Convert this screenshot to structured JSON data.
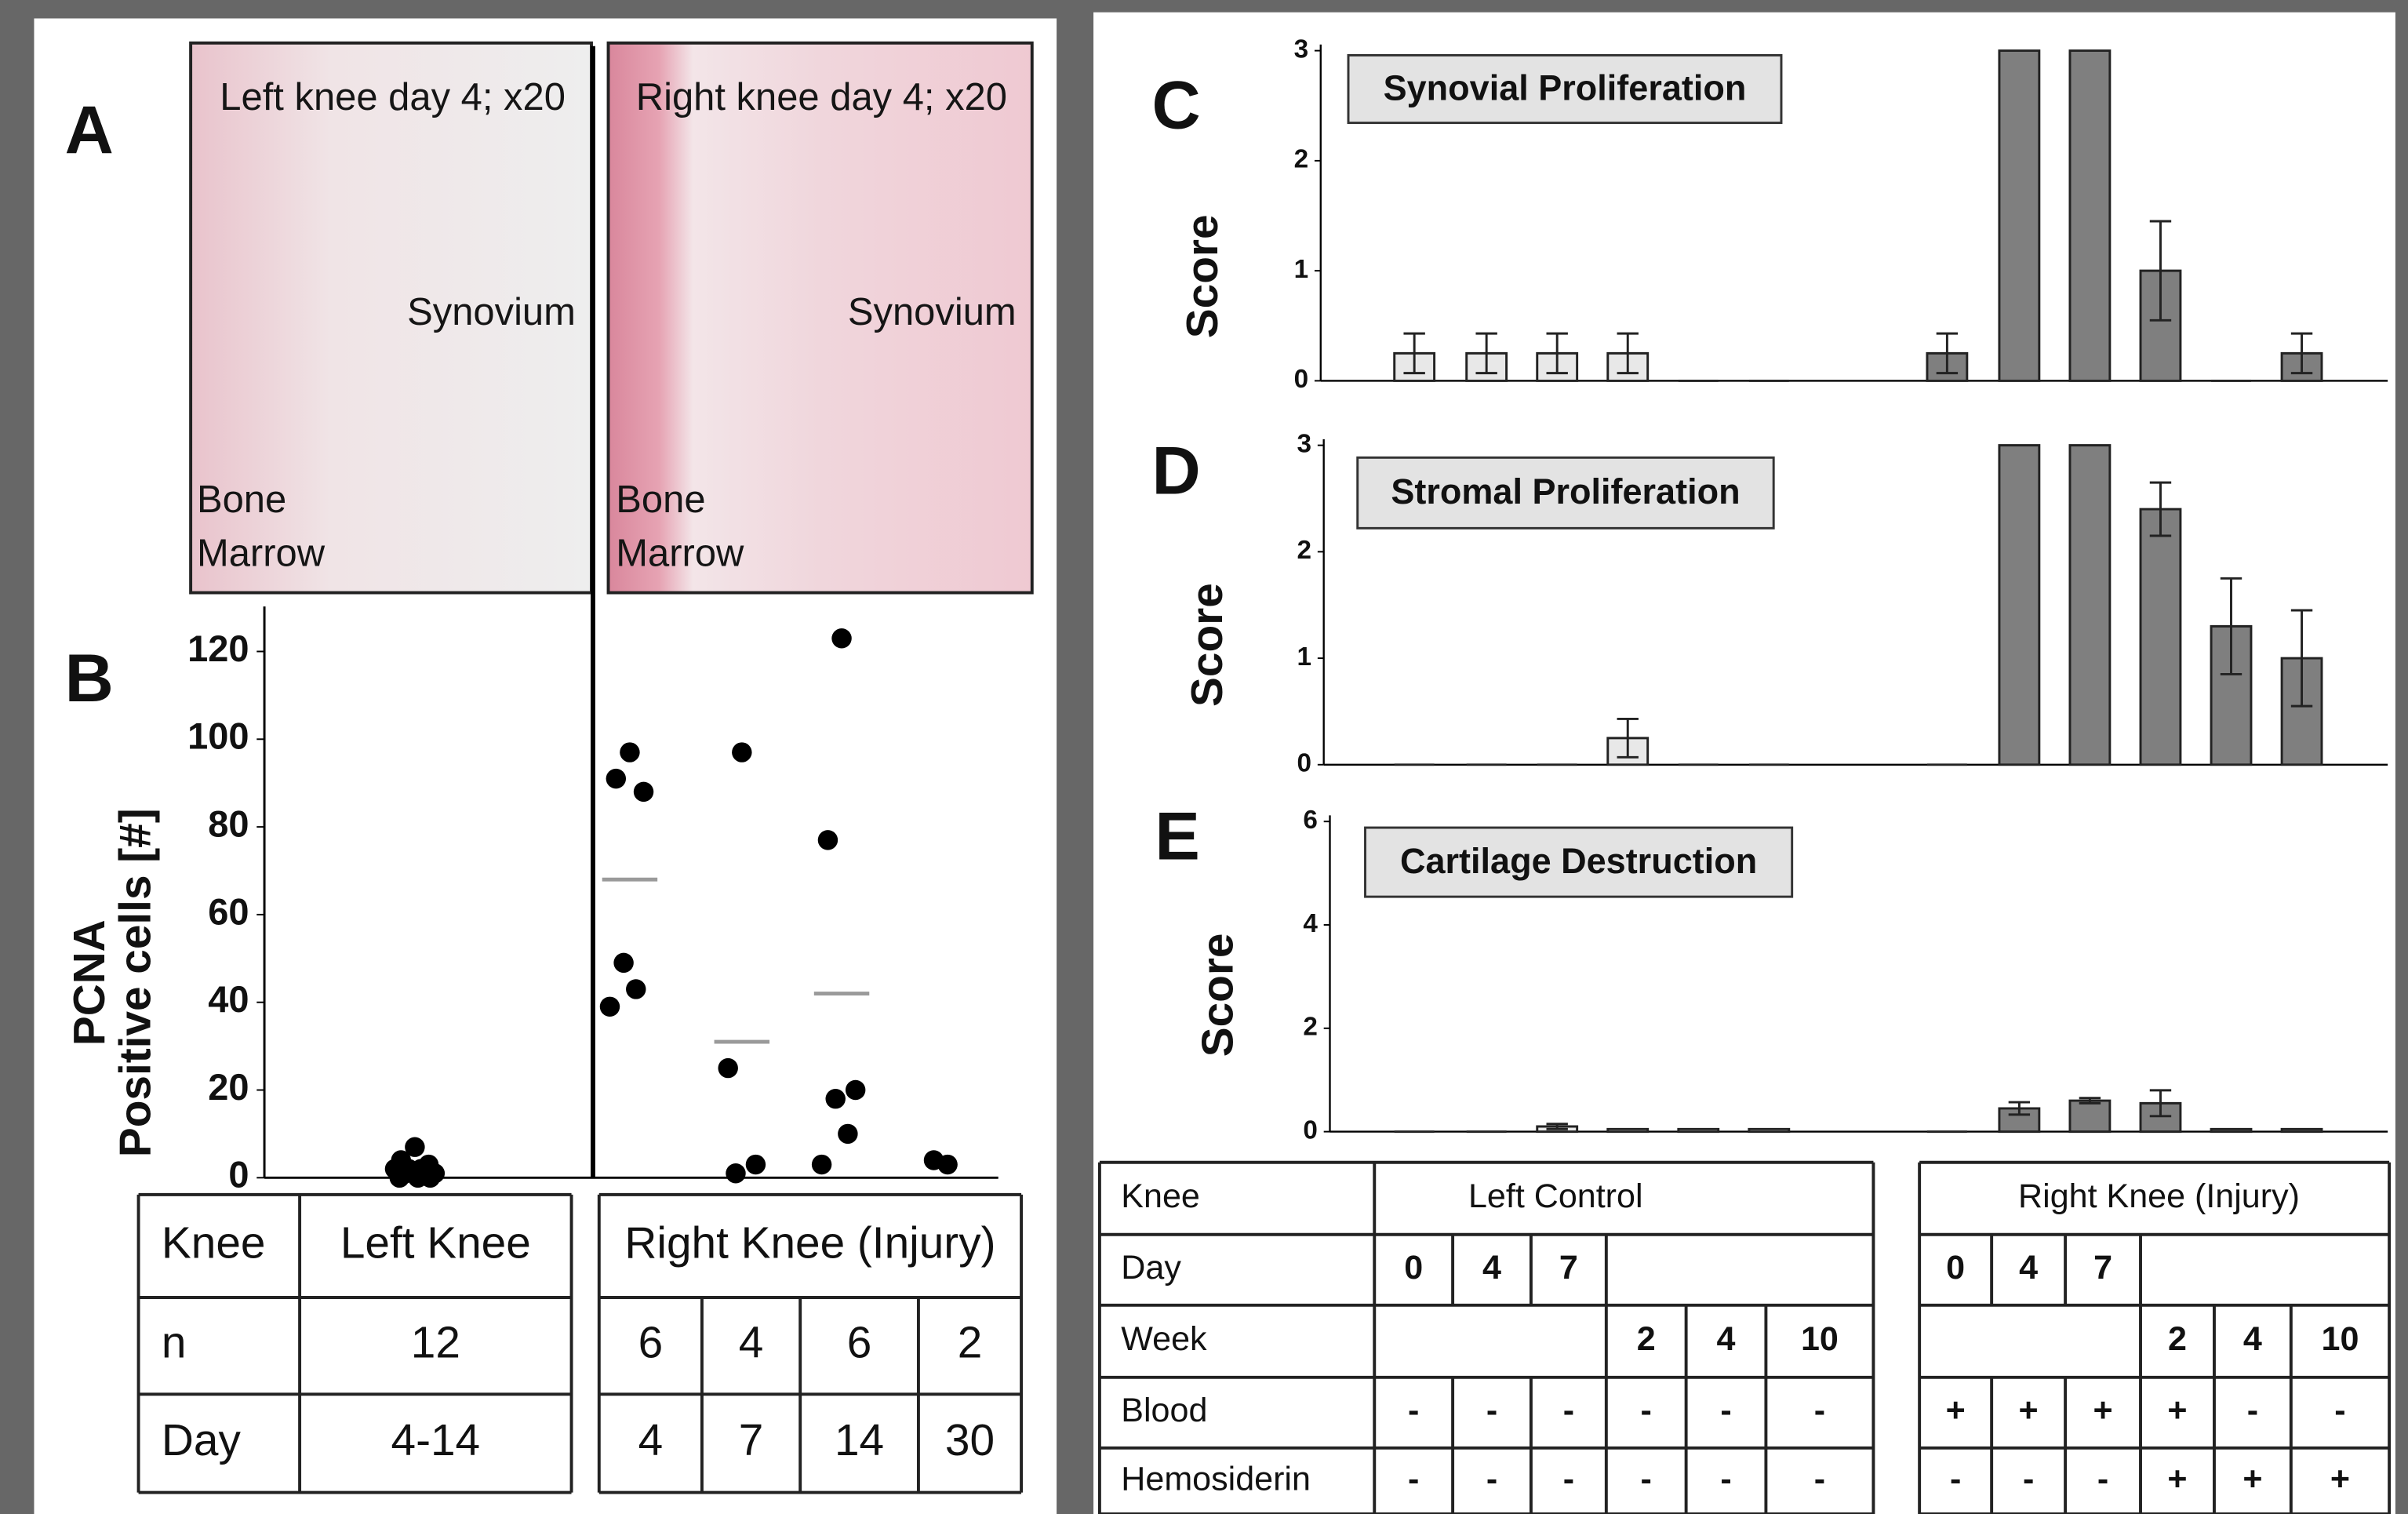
{
  "micrographs": {
    "panel": "A",
    "images": [
      {
        "title": "Left knee day 4; x20",
        "tissue": "Synovium",
        "bone": "Bone",
        "marrow": "Marrow"
      },
      {
        "title": "Right knee day 4; x20",
        "tissue": "Synovium",
        "bone": "Bone",
        "marrow": "Marrow"
      }
    ]
  },
  "chart_data": [
    {
      "panel": "B",
      "type": "scatter",
      "y_label": [
        "PCNA",
        "Positive cells [#]"
      ],
      "groups": [
        {
          "values": [
            7,
            4,
            3,
            2,
            2,
            2,
            1,
            1,
            1,
            0,
            0,
            0
          ]
        },
        {
          "values": [
            97,
            91,
            88,
            49,
            43,
            39
          ],
          "mean": 68
        },
        {
          "values": [
            97,
            25,
            3,
            1
          ],
          "mean": 31
        },
        {
          "values": [
            123,
            77,
            20,
            18,
            10,
            3
          ],
          "mean": 42
        },
        {
          "values": [
            3,
            4
          ]
        }
      ],
      "color": "#000000",
      "mean_color": "#9a9a9a",
      "ylim": [
        0,
        125
      ],
      "yticks": [
        0,
        20,
        40,
        60,
        80,
        100,
        120
      ]
    },
    {
      "panel": "C",
      "type": "bar",
      "title": "Synovial Proliferation",
      "y_label": "Score",
      "categories": [
        null,
        null,
        null,
        null,
        null,
        null,
        null,
        null,
        null,
        null,
        null,
        null
      ],
      "values": [
        0.25,
        0.25,
        0.25,
        0.25,
        0,
        0,
        0.25,
        3,
        3,
        1,
        0,
        0.25
      ],
      "errors": [
        0.18,
        0.18,
        0.18,
        0.18,
        0,
        0,
        0.18,
        0,
        0,
        0.45,
        0,
        0.18
      ],
      "colors": [
        "#e8e8e8",
        "#e8e8e8",
        "#e8e8e8",
        "#e8e8e8",
        "#e8e8e8",
        "#e8e8e8",
        "#7f7f7f",
        "#7f7f7f",
        "#7f7f7f",
        "#7f7f7f",
        "#7f7f7f",
        "#7f7f7f"
      ],
      "ylim": [
        0,
        3
      ],
      "yticks": [
        0,
        1,
        2,
        3
      ]
    },
    {
      "panel": "D",
      "type": "bar",
      "title": "Stromal Proliferation",
      "y_label": "Score",
      "categories": [
        null,
        null,
        null,
        null,
        null,
        null,
        null,
        null,
        null,
        null,
        null,
        null
      ],
      "values": [
        0,
        0,
        0,
        0.25,
        0,
        0,
        0,
        3,
        3,
        2.4,
        1.3,
        1
      ],
      "errors": [
        0,
        0,
        0,
        0.18,
        0,
        0,
        0,
        0,
        0,
        0.25,
        0.45,
        0.45
      ],
      "colors": [
        "#e8e8e8",
        "#e8e8e8",
        "#e8e8e8",
        "#e8e8e8",
        "#e8e8e8",
        "#e8e8e8",
        "#7f7f7f",
        "#7f7f7f",
        "#7f7f7f",
        "#7f7f7f",
        "#7f7f7f",
        "#7f7f7f"
      ],
      "ylim": [
        0,
        3
      ],
      "yticks": [
        0,
        1,
        2,
        3
      ]
    },
    {
      "panel": "E",
      "type": "bar",
      "title": "Cartilage Destruction",
      "y_label": "Score",
      "categories": [
        null,
        null,
        null,
        null,
        null,
        null,
        null,
        null,
        null,
        null,
        null,
        null
      ],
      "values": [
        0,
        0,
        0.1,
        0.05,
        0.05,
        0.05,
        0,
        0.45,
        0.6,
        0.55,
        0.05,
        0.05
      ],
      "errors": [
        0,
        0,
        0.05,
        0,
        0,
        0,
        0,
        0.12,
        0.05,
        0.25,
        0,
        0
      ],
      "colors": [
        "#e8e8e8",
        "#e8e8e8",
        "#e8e8e8",
        "#e8e8e8",
        "#e8e8e8",
        "#e8e8e8",
        "#7f7f7f",
        "#7f7f7f",
        "#7f7f7f",
        "#7f7f7f",
        "#7f7f7f",
        "#7f7f7f"
      ],
      "ylim": [
        0,
        6
      ],
      "yticks": [
        0,
        2,
        4,
        6
      ]
    }
  ],
  "table_b": {
    "header": [
      "Knee",
      "Left Knee",
      "Right Knee (Injury)"
    ],
    "rows": [
      {
        "label": "n",
        "left": "12",
        "right": [
          "6",
          "4",
          "6",
          "2"
        ]
      },
      {
        "label": "Day",
        "left": "4-14",
        "right": [
          "4",
          "7",
          "14",
          "30"
        ]
      }
    ]
  },
  "conditions_table": {
    "header": {
      "label": "Knee",
      "left": "Left Control",
      "right": "Right Knee (Injury)"
    },
    "rows": [
      {
        "label": "Day",
        "left": [
          "0",
          "4",
          "7",
          null,
          null,
          null
        ],
        "right": [
          "0",
          "4",
          "7",
          null,
          null,
          null
        ]
      },
      {
        "label": "Week",
        "left": [
          null,
          null,
          null,
          "2",
          "4",
          "10"
        ],
        "right": [
          null,
          null,
          null,
          "2",
          "4",
          "10"
        ]
      },
      {
        "label": "Blood",
        "left": [
          "-",
          "-",
          "-",
          "-",
          "-",
          "-"
        ],
        "right": [
          "+",
          "+",
          "+",
          "+",
          "-",
          "-"
        ]
      },
      {
        "label": "Hemosiderin",
        "left": [
          "-",
          "-",
          "-",
          "-",
          "-",
          "-"
        ],
        "right": [
          "-",
          "-",
          "-",
          "+",
          "+",
          "+"
        ]
      }
    ]
  }
}
